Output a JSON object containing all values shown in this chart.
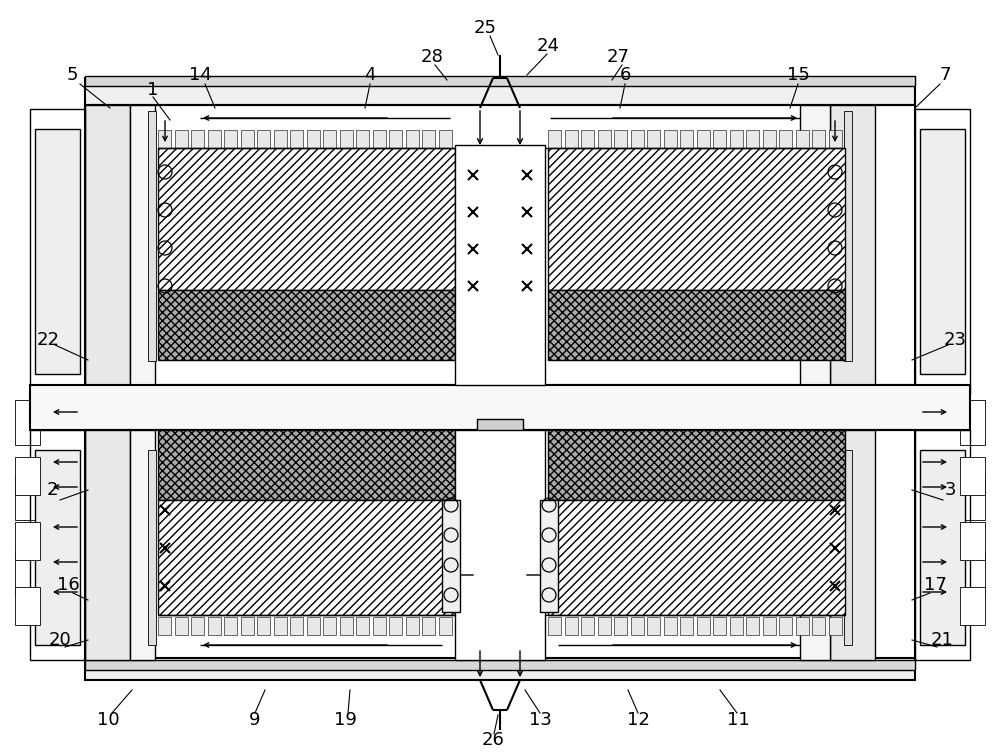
{
  "bg_color": "#ffffff",
  "fig_width": 10.0,
  "fig_height": 7.54,
  "lw": 1.0,
  "lw_thick": 1.5,
  "lw_thin": 0.6
}
